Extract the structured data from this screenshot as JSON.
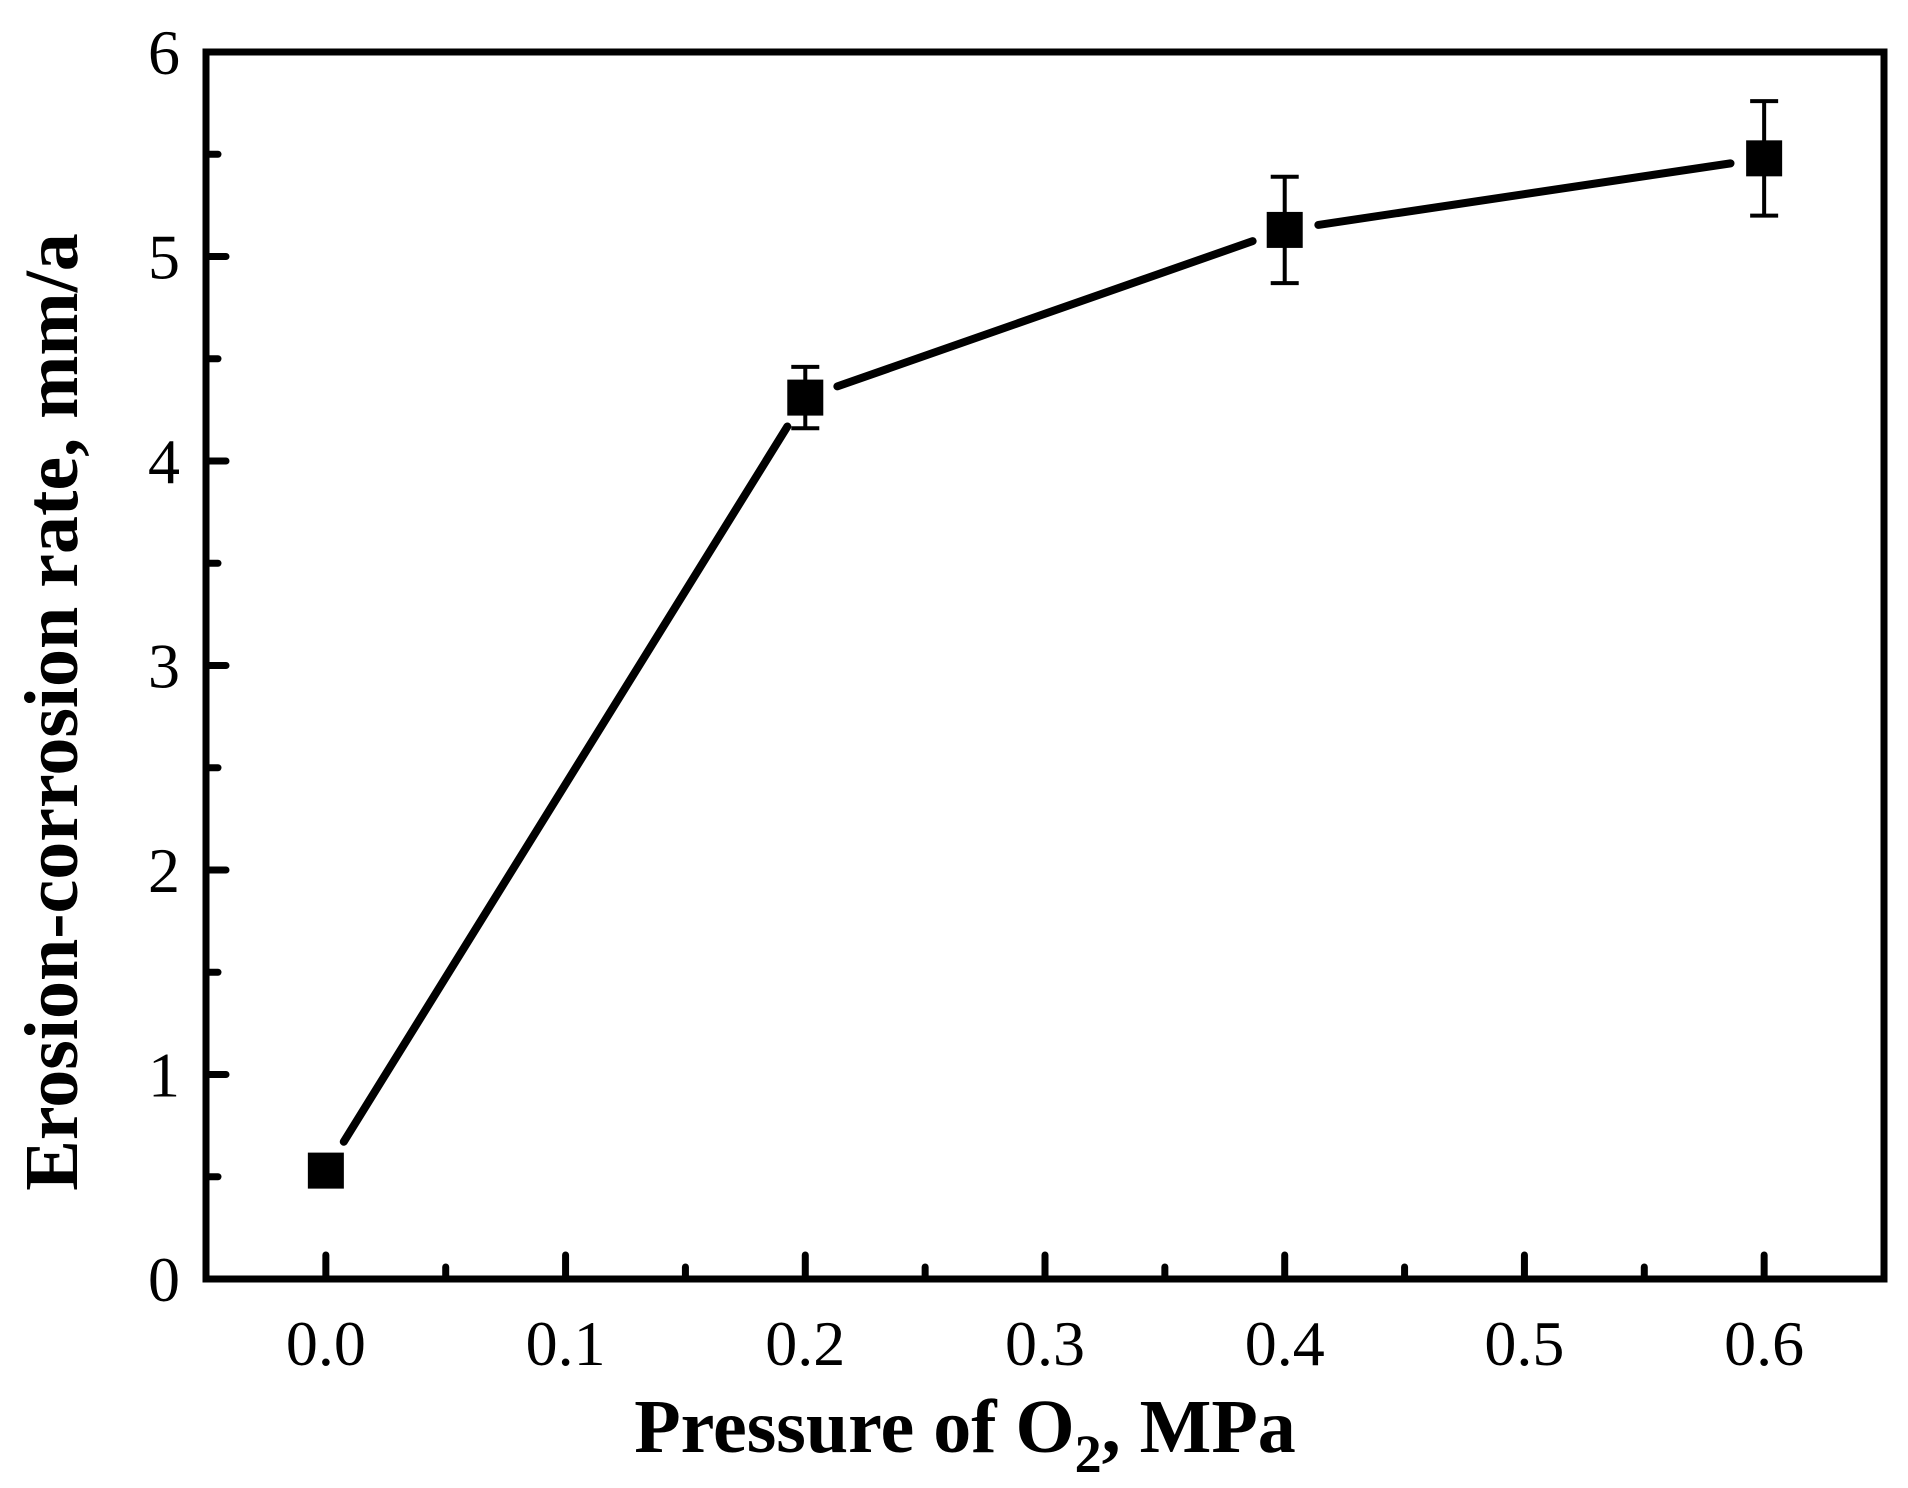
{
  "chart_data": {
    "type": "line",
    "xlabel": {
      "main": "Pressure of O",
      "sub": "2",
      "suffix": ", MPa"
    },
    "ylabel": "Erosion-corrosion rate, mm/a",
    "xlim": [
      -0.05,
      0.65
    ],
    "ylim": [
      0,
      6
    ],
    "xticks": [
      0.0,
      0.1,
      0.2,
      0.3,
      0.4,
      0.5,
      0.6
    ],
    "xtick_labels": [
      "0.0",
      "0.1",
      "0.2",
      "0.3",
      "0.4",
      "0.5",
      "0.6"
    ],
    "xminor": [
      0.05,
      0.15,
      0.25,
      0.35,
      0.45,
      0.55
    ],
    "yticks": [
      0,
      1,
      2,
      3,
      4,
      5,
      6
    ],
    "ytick_labels": [
      "0",
      "1",
      "2",
      "3",
      "4",
      "5",
      "6"
    ],
    "yminor": [
      0.5,
      1.5,
      2.5,
      3.5,
      4.5,
      5.5
    ],
    "grid": false,
    "series": [
      {
        "x": [
          0.0,
          0.2,
          0.4,
          0.6
        ],
        "y": [
          0.53,
          4.31,
          5.13,
          5.48
        ],
        "error": [
          0.02,
          0.15,
          0.26,
          0.28
        ],
        "marker": "square",
        "color": "#000000"
      }
    ]
  }
}
